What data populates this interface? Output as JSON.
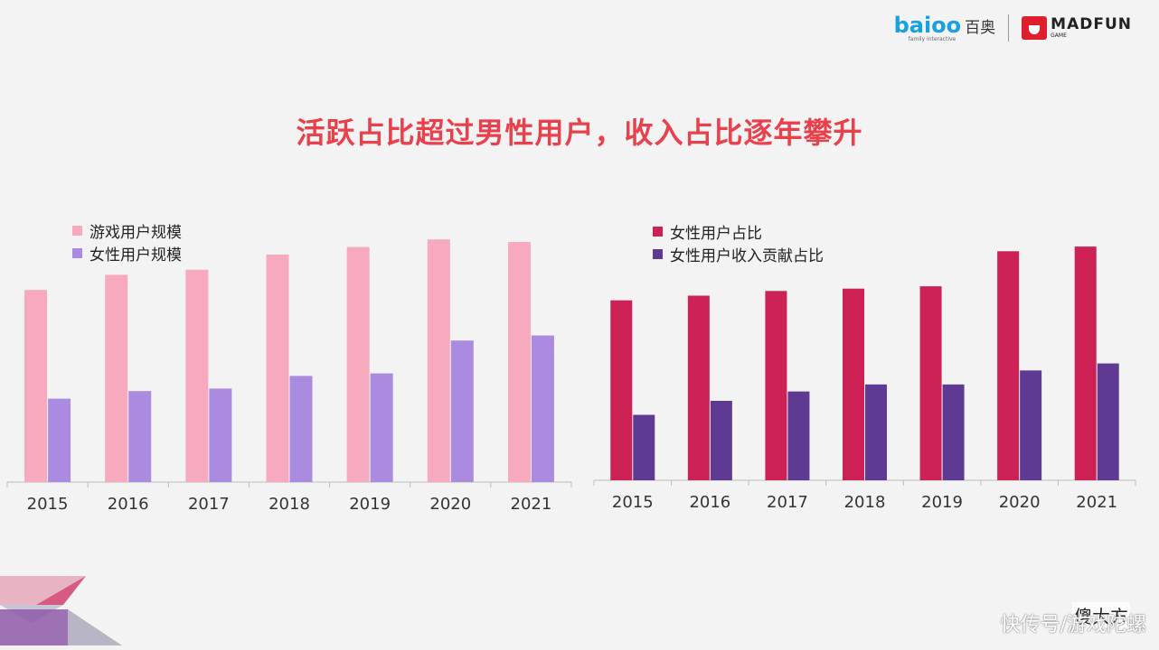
{
  "logos": {
    "baioo_text": "baioo",
    "baioo_cn": "百奥",
    "baioo_sub": "family interactive",
    "madfun_main": "MADFUN",
    "madfun_sub": "GAME"
  },
  "title": "活跃占比超过男性用户，收入占比逐年攀升",
  "watermark": "快传号/游戏陀螺",
  "badge": "傻大方",
  "colors": {
    "title": "#e8414b",
    "left_series1": "#f7a9be",
    "left_series2": "#ab8be0",
    "right_series1": "#cc2155",
    "right_series2": "#5f3a92"
  },
  "chart_data": [
    {
      "type": "bar",
      "categories": [
        "2015",
        "2016",
        "2017",
        "2018",
        "2019",
        "2020",
        "2021"
      ],
      "series": [
        {
          "name": "游戏用户规模",
          "values": [
            76,
            82,
            84,
            90,
            93,
            96,
            95
          ]
        },
        {
          "name": "女性用户规模",
          "values": [
            33,
            36,
            37,
            42,
            43,
            56,
            58
          ]
        }
      ],
      "ylim": [
        0,
        105
      ],
      "grid": false,
      "legend": "top-left"
    },
    {
      "type": "bar",
      "categories": [
        "2015",
        "2016",
        "2017",
        "2018",
        "2019",
        "2020",
        "2021"
      ],
      "series": [
        {
          "name": "女性用户占比",
          "values": [
            77,
            79,
            81,
            82,
            83,
            98,
            100
          ]
        },
        {
          "name": "女性用户收入贡献占比",
          "values": [
            28,
            34,
            38,
            41,
            41,
            47,
            50
          ]
        }
      ],
      "ylim": [
        0,
        107
      ],
      "grid": false,
      "legend": "top-left"
    }
  ]
}
